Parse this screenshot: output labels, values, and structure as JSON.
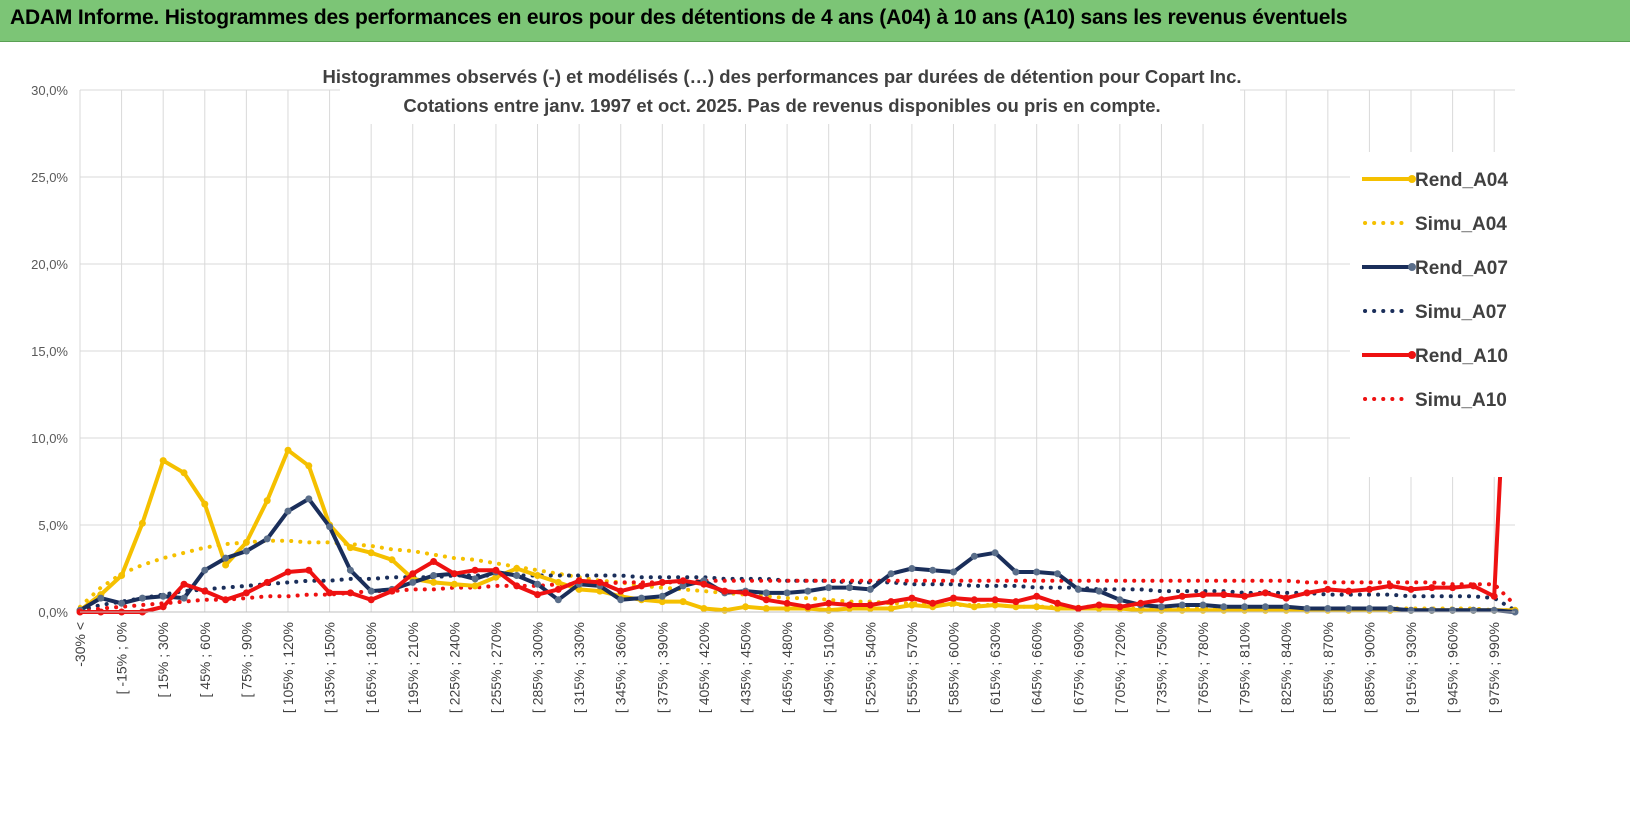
{
  "banner": {
    "title": "ADAM Informe. Histogrammes des performances en euros pour des détentions de 4 ans (A04) à 10 ans (A10) sans les revenus éventuels"
  },
  "colors": {
    "banner": "#7cc576",
    "A04": "#f5c000",
    "A07": "#1a2e5a",
    "A10": "#ee1111",
    "grid": "#d9d9d9"
  },
  "chart_data": {
    "type": "line",
    "title": "Histogrammes observés (-) et modélisés (…) des performances par durées de détention pour Copart Inc.",
    "subtitle": "Cotations entre janv. 1997 et oct. 2025. Pas de revenus disponibles ou pris en compte.",
    "xlabel": "",
    "ylabel": "",
    "ylim": [
      0,
      0.3
    ],
    "y_ticks": [
      "0,0%",
      "5,0%",
      "10,0%",
      "15,0%",
      "20,0%",
      "25,0%",
      "30,0%"
    ],
    "grid": true,
    "legend_position": "right",
    "x_labels": [
      "-30% <",
      "[ -15% ; 0%",
      "[ 15% ; 30%",
      "[ 45% ; 60%",
      "[ 75% ; 90%",
      "[ 105% ; 120%",
      "[ 135% ; 150%",
      "[ 165% ; 180%",
      "[ 195% ; 210%",
      "[ 225% ; 240%",
      "[ 255% ; 270%",
      "[ 285% ; 300%",
      "[ 315% ; 330%",
      "[ 345% ; 360%",
      "[ 375% ; 390%",
      "[ 405% ; 420%",
      "[ 435% ; 450%",
      "[ 465% ; 480%",
      "[ 495% ; 510%",
      "[ 525% ; 540%",
      "[ 555% ; 570%",
      "[ 585% ; 600%",
      "[ 615% ; 630%",
      "[ 645% ; 660%",
      "[ 675% ; 690%",
      "[ 705% ; 720%",
      "[ 735% ; 750%",
      "[ 765% ; 780%",
      "[ 795% ; 810%",
      "[ 825% ; 840%",
      "[ 855% ; 870%",
      "[ 885% ; 900%",
      "[ 915% ; 930%",
      "[ 945% ; 960%",
      "[ 975% ; 990%"
    ],
    "n_points": 70,
    "series": [
      {
        "name": "Rend_A04",
        "style": "solid",
        "color": "#f5c000",
        "values": [
          0.001,
          0.01,
          0.021,
          0.051,
          0.087,
          0.08,
          0.062,
          0.027,
          0.04,
          0.064,
          0.093,
          0.084,
          0.05,
          0.037,
          0.034,
          0.03,
          0.019,
          0.017,
          0.016,
          0.015,
          0.02,
          0.025,
          0.021,
          0.017,
          0.013,
          0.012,
          0.009,
          0.007,
          0.006,
          0.006,
          0.002,
          0.001,
          0.003,
          0.002,
          0.002,
          0.002,
          0.001,
          0.002,
          0.002,
          0.002,
          0.004,
          0.003,
          0.005,
          0.003,
          0.004,
          0.003,
          0.003,
          0.002,
          0.002,
          0.002,
          0.002,
          0.001,
          0.001,
          0.001,
          0.001,
          0.001,
          0.001,
          0.001,
          0.001,
          0.001,
          0.001,
          0.001,
          0.001,
          0.001,
          0.001,
          0.001,
          0.001,
          0.001,
          0.001,
          0.001
        ]
      },
      {
        "name": "Simu_A04",
        "style": "dotted",
        "color": "#f5c000",
        "values": [
          0.003,
          0.014,
          0.022,
          0.027,
          0.031,
          0.034,
          0.037,
          0.039,
          0.04,
          0.041,
          0.041,
          0.04,
          0.04,
          0.039,
          0.038,
          0.036,
          0.035,
          0.033,
          0.031,
          0.03,
          0.028,
          0.026,
          0.024,
          0.022,
          0.02,
          0.018,
          0.017,
          0.015,
          0.014,
          0.013,
          0.012,
          0.011,
          0.01,
          0.009,
          0.008,
          0.008,
          0.007,
          0.006,
          0.006,
          0.005,
          0.005,
          0.005,
          0.004,
          0.004,
          0.004,
          0.003,
          0.003,
          0.003,
          0.003,
          0.003,
          0.002,
          0.002,
          0.002,
          0.002,
          0.002,
          0.002,
          0.002,
          0.002,
          0.002,
          0.002,
          0.002,
          0.002,
          0.002,
          0.002,
          0.002,
          0.002,
          0.002,
          0.002,
          0.001,
          0.001
        ]
      },
      {
        "name": "Rend_A07",
        "style": "solid",
        "color": "#1a2e5a",
        "values": [
          0.001,
          0.008,
          0.005,
          0.008,
          0.009,
          0.008,
          0.024,
          0.031,
          0.035,
          0.042,
          0.058,
          0.065,
          0.049,
          0.024,
          0.012,
          0.013,
          0.017,
          0.021,
          0.022,
          0.019,
          0.023,
          0.021,
          0.016,
          0.007,
          0.016,
          0.015,
          0.007,
          0.008,
          0.009,
          0.015,
          0.018,
          0.011,
          0.012,
          0.011,
          0.011,
          0.012,
          0.014,
          0.014,
          0.013,
          0.022,
          0.025,
          0.024,
          0.023,
          0.032,
          0.034,
          0.023,
          0.023,
          0.022,
          0.013,
          0.012,
          0.007,
          0.004,
          0.003,
          0.004,
          0.004,
          0.003,
          0.003,
          0.003,
          0.003,
          0.002,
          0.002,
          0.002,
          0.002,
          0.002,
          0.001,
          0.001,
          0.001,
          0.001,
          0.001,
          0.0
        ]
      },
      {
        "name": "Simu_A07",
        "style": "dotted",
        "color": "#1a2e5a",
        "values": [
          0.001,
          0.004,
          0.006,
          0.008,
          0.01,
          0.012,
          0.013,
          0.014,
          0.015,
          0.016,
          0.017,
          0.018,
          0.018,
          0.019,
          0.019,
          0.02,
          0.02,
          0.02,
          0.021,
          0.021,
          0.021,
          0.021,
          0.021,
          0.021,
          0.021,
          0.021,
          0.021,
          0.02,
          0.02,
          0.02,
          0.02,
          0.019,
          0.019,
          0.019,
          0.018,
          0.018,
          0.018,
          0.017,
          0.017,
          0.017,
          0.016,
          0.016,
          0.016,
          0.015,
          0.015,
          0.015,
          0.014,
          0.014,
          0.014,
          0.013,
          0.013,
          0.013,
          0.012,
          0.012,
          0.012,
          0.012,
          0.011,
          0.011,
          0.011,
          0.011,
          0.01,
          0.01,
          0.01,
          0.01,
          0.009,
          0.009,
          0.009,
          0.009,
          0.008,
          0.001
        ]
      },
      {
        "name": "Rend_A10",
        "style": "solid",
        "color": "#ee1111",
        "values": [
          0.0,
          0.0,
          0.0,
          0.0,
          0.003,
          0.016,
          0.012,
          0.007,
          0.011,
          0.017,
          0.023,
          0.024,
          0.011,
          0.011,
          0.007,
          0.012,
          0.022,
          0.029,
          0.022,
          0.024,
          0.024,
          0.015,
          0.01,
          0.013,
          0.018,
          0.017,
          0.012,
          0.015,
          0.017,
          0.018,
          0.016,
          0.012,
          0.011,
          0.007,
          0.005,
          0.003,
          0.005,
          0.004,
          0.004,
          0.006,
          0.008,
          0.005,
          0.008,
          0.007,
          0.007,
          0.006,
          0.009,
          0.005,
          0.002,
          0.004,
          0.003,
          0.005,
          0.007,
          0.009,
          0.01,
          0.01,
          0.009,
          0.011,
          0.008,
          0.011,
          0.013,
          0.012,
          0.013,
          0.015,
          0.013,
          0.014,
          0.014,
          0.015,
          0.009,
          0.252
        ]
      },
      {
        "name": "Simu_A10",
        "style": "dotted",
        "color": "#ee1111",
        "values": [
          0.0,
          0.002,
          0.003,
          0.004,
          0.005,
          0.006,
          0.007,
          0.007,
          0.008,
          0.009,
          0.009,
          0.01,
          0.01,
          0.011,
          0.012,
          0.012,
          0.013,
          0.013,
          0.014,
          0.014,
          0.015,
          0.015,
          0.015,
          0.016,
          0.016,
          0.016,
          0.017,
          0.017,
          0.017,
          0.017,
          0.018,
          0.018,
          0.018,
          0.018,
          0.018,
          0.018,
          0.018,
          0.018,
          0.018,
          0.018,
          0.018,
          0.018,
          0.018,
          0.018,
          0.018,
          0.018,
          0.018,
          0.018,
          0.018,
          0.018,
          0.018,
          0.018,
          0.018,
          0.018,
          0.018,
          0.018,
          0.018,
          0.018,
          0.018,
          0.017,
          0.017,
          0.017,
          0.017,
          0.017,
          0.017,
          0.017,
          0.016,
          0.016,
          0.016,
          0.004
        ]
      }
    ]
  }
}
